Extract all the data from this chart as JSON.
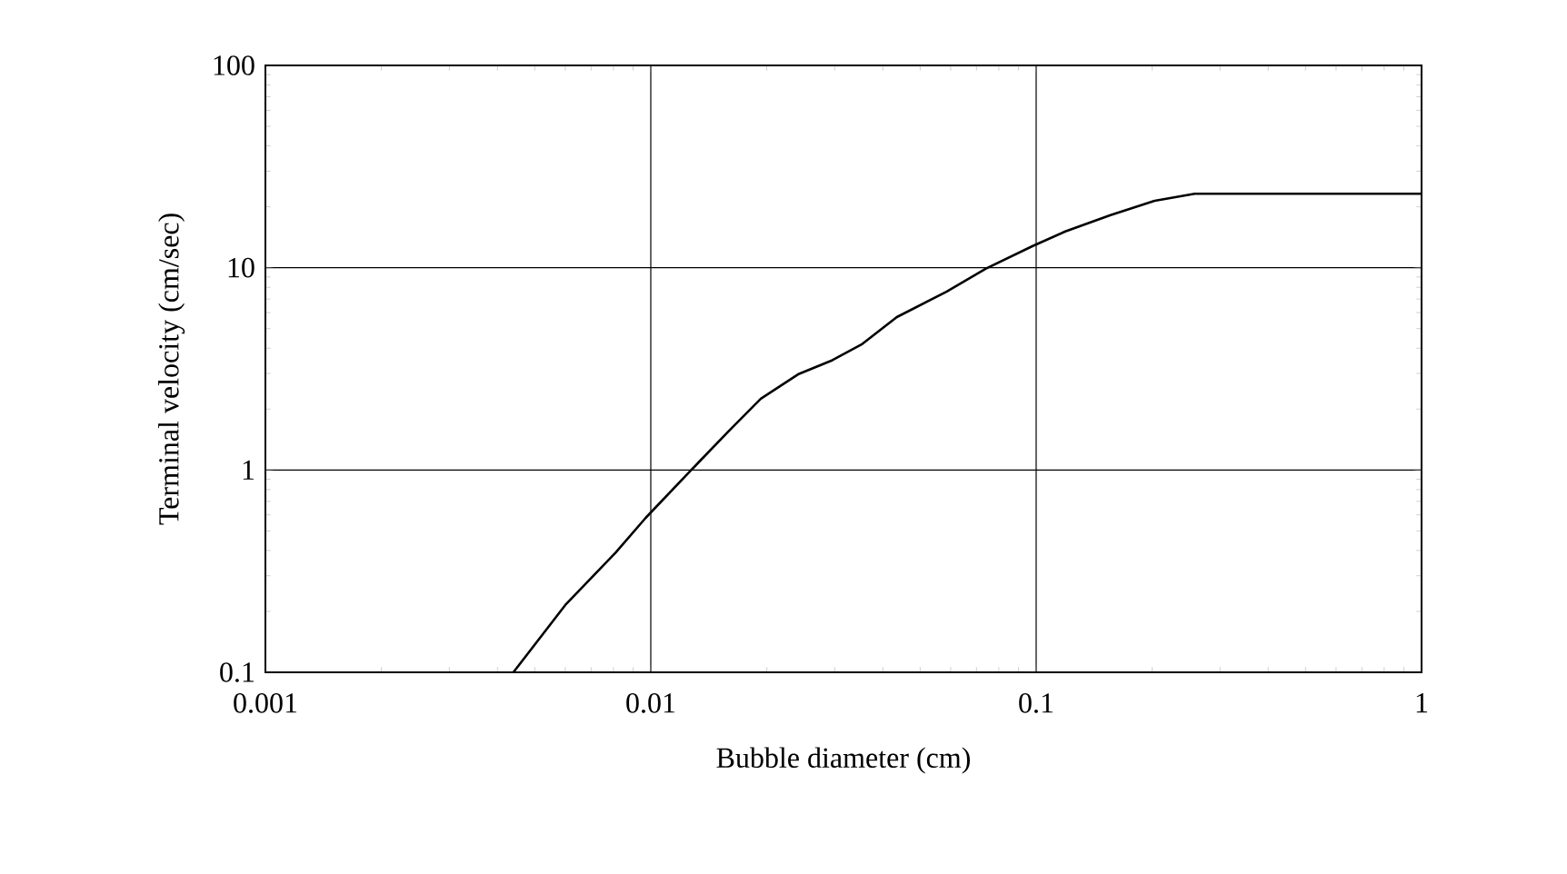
{
  "chart_data": {
    "type": "line",
    "xlabel": "Bubble diameter (cm)",
    "ylabel": "Terminal velocity (cm/sec)",
    "log": "xy",
    "grid": true,
    "xlim": [
      0.001,
      1
    ],
    "ylim": [
      0.1,
      100
    ],
    "xticks": [
      0.001,
      0.01,
      0.1,
      1
    ],
    "yticks": [
      0.1,
      1,
      10,
      100
    ],
    "marker": "none",
    "line_style": "solid",
    "series": [
      {
        "color": "#000000",
        "x": [
          0.0044,
          0.006,
          0.0081,
          0.0097,
          0.0133,
          0.0159,
          0.0193,
          0.0241,
          0.0296,
          0.0354,
          0.0435,
          0.0585,
          0.0741,
          0.098,
          0.119,
          0.156,
          0.203,
          0.258,
          1
        ],
        "values": [
          0.1,
          0.215,
          0.39,
          0.58,
          1.09,
          1.55,
          2.25,
          2.97,
          3.49,
          4.2,
          5.7,
          7.6,
          9.9,
          12.8,
          15.1,
          18.2,
          21.4,
          23.2,
          23.2
        ]
      }
    ]
  }
}
